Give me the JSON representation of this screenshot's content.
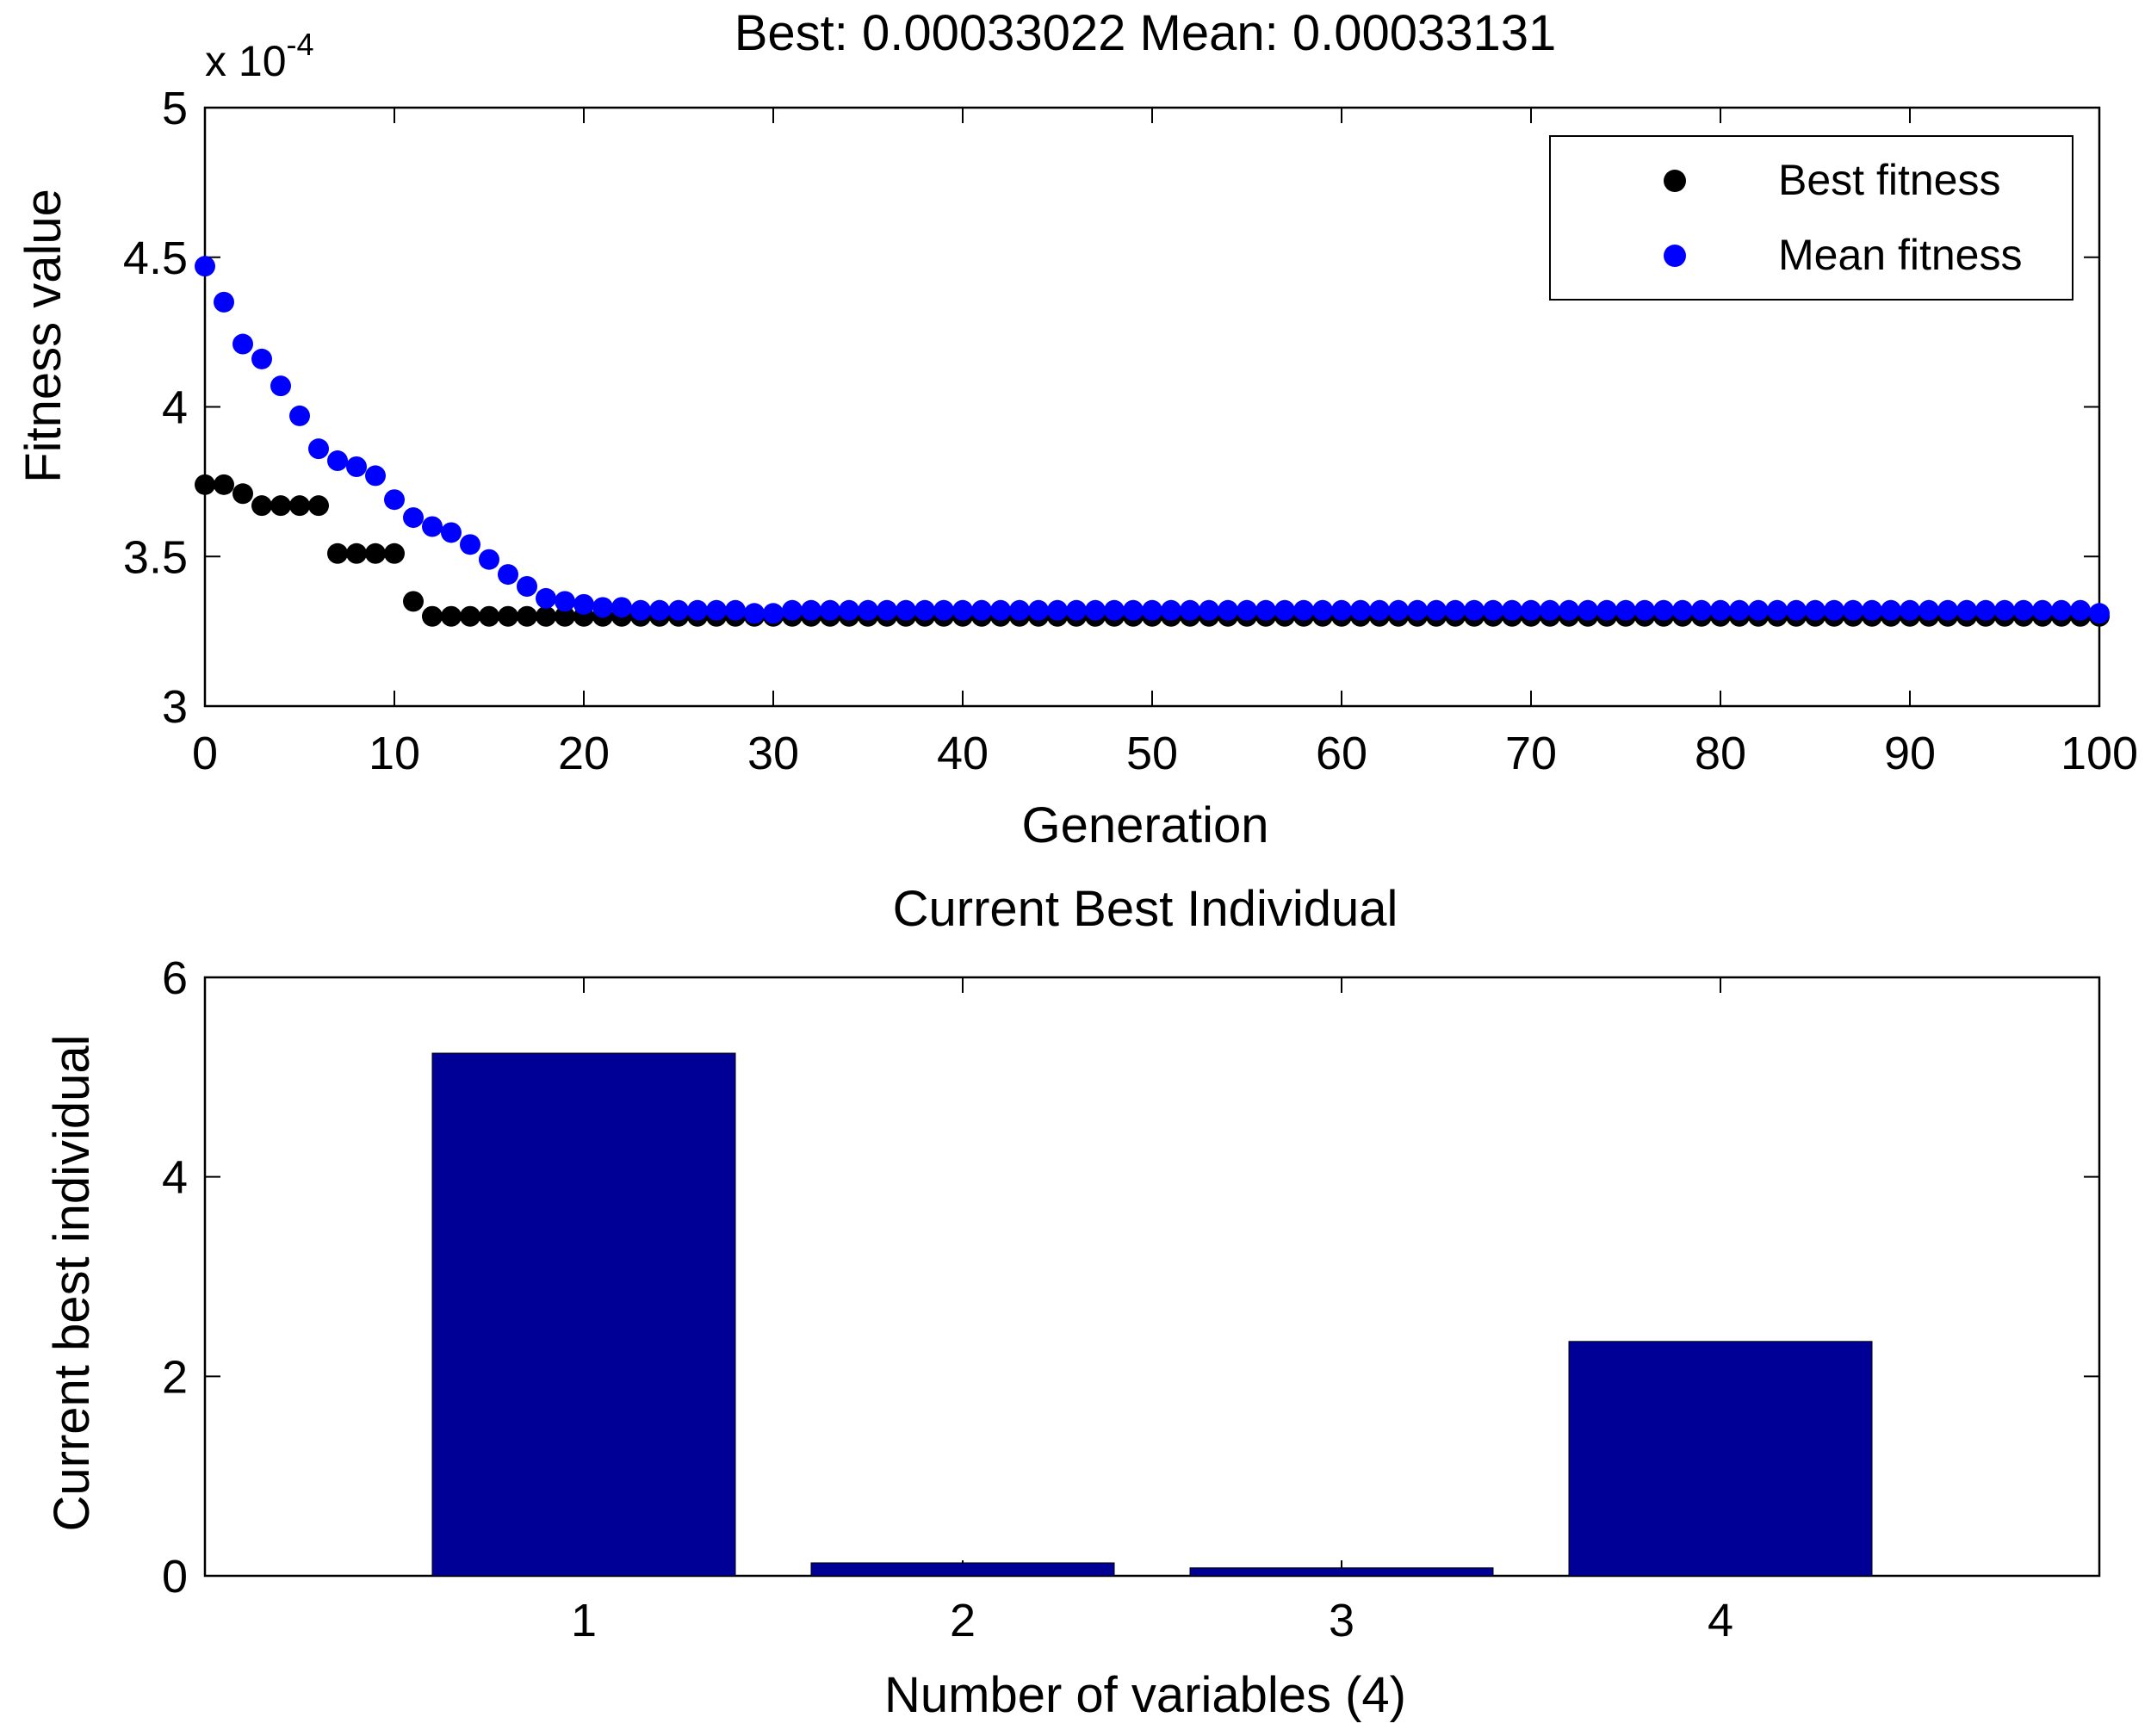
{
  "chart_data": [
    {
      "type": "scatter",
      "title": "Best: 0.00033022 Mean: 0.00033131",
      "xlabel": "Generation",
      "ylabel": "Fitness value",
      "exponent_label": "x 10",
      "exponent_power": "-4",
      "xlim": [
        0,
        100
      ],
      "ylim": [
        3,
        5
      ],
      "xticks": [
        "0",
        "10",
        "20",
        "30",
        "40",
        "50",
        "60",
        "70",
        "80",
        "90",
        "100"
      ],
      "yticks": [
        "3",
        "3.5",
        "4",
        "4.5",
        "5"
      ],
      "legend_position": "top-right",
      "series": [
        {
          "name": "Best fitness",
          "color": "#000000",
          "x": [
            0,
            1,
            2,
            3,
            4,
            5,
            6,
            7,
            8,
            9,
            10,
            11,
            12,
            13,
            14,
            15,
            16,
            17,
            18,
            19,
            20,
            21,
            22,
            23,
            24,
            25,
            26,
            27,
            28,
            29,
            30,
            31,
            32,
            33,
            34,
            35,
            36,
            37,
            38,
            39,
            40,
            41,
            42,
            43,
            44,
            45,
            46,
            47,
            48,
            49,
            50,
            51,
            52,
            53,
            54,
            55,
            56,
            57,
            58,
            59,
            60,
            61,
            62,
            63,
            64,
            65,
            66,
            67,
            68,
            69,
            70,
            71,
            72,
            73,
            74,
            75,
            76,
            77,
            78,
            79,
            80,
            81,
            82,
            83,
            84,
            85,
            86,
            87,
            88,
            89,
            90,
            91,
            92,
            93,
            94,
            95,
            96,
            97,
            98,
            99,
            100
          ],
          "values": [
            3.74,
            3.74,
            3.71,
            3.67,
            3.67,
            3.67,
            3.67,
            3.51,
            3.51,
            3.51,
            3.51,
            3.35,
            3.3,
            3.3,
            3.3,
            3.3,
            3.3,
            3.3,
            3.3,
            3.3,
            3.3,
            3.3,
            3.3,
            3.3,
            3.3,
            3.3,
            3.3,
            3.3,
            3.3,
            3.3,
            3.3,
            3.3,
            3.3,
            3.3,
            3.3,
            3.3,
            3.3,
            3.3,
            3.3,
            3.3,
            3.3,
            3.3,
            3.3,
            3.3,
            3.3,
            3.3,
            3.3,
            3.3,
            3.3,
            3.3,
            3.3,
            3.3,
            3.3,
            3.3,
            3.3,
            3.3,
            3.3,
            3.3,
            3.3,
            3.3,
            3.3,
            3.3,
            3.3,
            3.3,
            3.3,
            3.3,
            3.3,
            3.3,
            3.3,
            3.3,
            3.3,
            3.3,
            3.3,
            3.3,
            3.3,
            3.3,
            3.3,
            3.3,
            3.3,
            3.3,
            3.3,
            3.3,
            3.3,
            3.3,
            3.3,
            3.3,
            3.3,
            3.3,
            3.3,
            3.3,
            3.3,
            3.3,
            3.3,
            3.3,
            3.3,
            3.3,
            3.3,
            3.3,
            3.3,
            3.3,
            3.3
          ]
        },
        {
          "name": "Mean fitness",
          "color": "#0000ff",
          "x": [
            0,
            1,
            2,
            3,
            4,
            5,
            6,
            7,
            8,
            9,
            10,
            11,
            12,
            13,
            14,
            15,
            16,
            17,
            18,
            19,
            20,
            21,
            22,
            23,
            24,
            25,
            26,
            27,
            28,
            29,
            30,
            31,
            32,
            33,
            34,
            35,
            36,
            37,
            38,
            39,
            40,
            41,
            42,
            43,
            44,
            45,
            46,
            47,
            48,
            49,
            50,
            51,
            52,
            53,
            54,
            55,
            56,
            57,
            58,
            59,
            60,
            61,
            62,
            63,
            64,
            65,
            66,
            67,
            68,
            69,
            70,
            71,
            72,
            73,
            74,
            75,
            76,
            77,
            78,
            79,
            80,
            81,
            82,
            83,
            84,
            85,
            86,
            87,
            88,
            89,
            90,
            91,
            92,
            93,
            94,
            95,
            96,
            97,
            98,
            99,
            100
          ],
          "values": [
            4.47,
            4.35,
            4.21,
            4.16,
            4.07,
            3.97,
            3.86,
            3.82,
            3.8,
            3.77,
            3.69,
            3.63,
            3.6,
            3.58,
            3.54,
            3.49,
            3.44,
            3.4,
            3.36,
            3.35,
            3.34,
            3.33,
            3.33,
            3.32,
            3.32,
            3.32,
            3.32,
            3.32,
            3.32,
            3.31,
            3.31,
            3.32,
            3.32,
            3.32,
            3.32,
            3.32,
            3.32,
            3.32,
            3.32,
            3.32,
            3.32,
            3.32,
            3.32,
            3.32,
            3.32,
            3.32,
            3.32,
            3.32,
            3.32,
            3.32,
            3.32,
            3.32,
            3.32,
            3.32,
            3.32,
            3.32,
            3.32,
            3.32,
            3.32,
            3.32,
            3.32,
            3.32,
            3.32,
            3.32,
            3.32,
            3.32,
            3.32,
            3.32,
            3.32,
            3.32,
            3.32,
            3.32,
            3.32,
            3.32,
            3.32,
            3.32,
            3.32,
            3.32,
            3.32,
            3.32,
            3.32,
            3.32,
            3.32,
            3.32,
            3.32,
            3.32,
            3.32,
            3.32,
            3.32,
            3.32,
            3.32,
            3.32,
            3.32,
            3.32,
            3.32,
            3.32,
            3.32,
            3.32,
            3.32,
            3.32,
            3.31
          ]
        }
      ]
    },
    {
      "type": "bar",
      "title": "Current Best Individual",
      "xlabel": "Number of variables (4)",
      "ylabel": "Current best individual",
      "categories": [
        "1",
        "2",
        "3",
        "4"
      ],
      "values": [
        5.24,
        0.13,
        0.08,
        2.35
      ],
      "color": "#000096",
      "xlim": [
        0,
        5
      ],
      "ylim": [
        0,
        6
      ],
      "yticks": [
        "0",
        "2",
        "4",
        "6"
      ]
    }
  ]
}
